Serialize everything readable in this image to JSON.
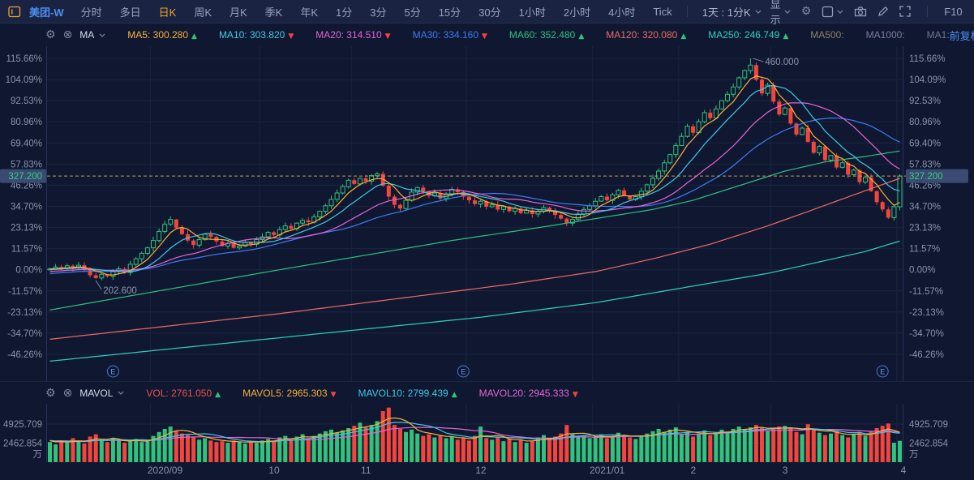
{
  "toolbar": {
    "stock_name": "美团-W",
    "tabs": [
      "分时",
      "多日",
      "日K",
      "周K",
      "月K",
      "季K",
      "年K",
      "1分",
      "3分",
      "5分",
      "15分",
      "30分",
      "1小时",
      "2小时",
      "4小时",
      "Tick"
    ],
    "active_tab": "日K",
    "composite_period": "1天 : 1分K",
    "display_label": "显示",
    "f10_label": "F10"
  },
  "ma_bar": {
    "indicator_name": "MA",
    "items": [
      {
        "label": "MA5",
        "value": "300.280",
        "color": "#f7b03c",
        "dir": "up"
      },
      {
        "label": "MA10",
        "value": "303.820",
        "color": "#3fc8e8",
        "dir": "down"
      },
      {
        "label": "MA20",
        "value": "314.510",
        "color": "#e664d8",
        "dir": "down"
      },
      {
        "label": "MA30",
        "value": "334.160",
        "color": "#3d7bf5",
        "dir": "down"
      },
      {
        "label": "MA60",
        "value": "352.480",
        "color": "#2fbf7f",
        "dir": "up"
      },
      {
        "label": "MA120",
        "value": "320.080",
        "color": "#f06a66",
        "dir": "up"
      },
      {
        "label": "MA250",
        "value": "246.749",
        "color": "#2fd0c0",
        "dir": "up"
      }
    ],
    "disabled_items": [
      {
        "label": "MA500",
        "color": "#8d8166"
      },
      {
        "label": "MA1000",
        "color": "#7f7aa0"
      },
      {
        "label": "MA1",
        "color": "#6d7690"
      }
    ],
    "adjust_label": "前复权"
  },
  "vol_bar": {
    "indicator_name": "MAVOL",
    "items": [
      {
        "label": "VOL",
        "value": "2761.050",
        "color": "#f05050",
        "dir": "up"
      },
      {
        "label": "MAVOL5",
        "value": "2965.303",
        "color": "#f7b03c",
        "dir": "down"
      },
      {
        "label": "MAVOL10",
        "value": "2799.439",
        "color": "#3fc8e8",
        "dir": "up"
      },
      {
        "label": "MAVOL20",
        "value": "2945.333",
        "color": "#e664d8",
        "dir": "down"
      }
    ]
  },
  "icons": {
    "settings": "⚙",
    "close": "⊗",
    "undo": "↺",
    "zoom_out": "⊖",
    "zoom_in": "⊕",
    "up_arrow": "▲",
    "down_arrow": "▼"
  },
  "colors": {
    "up": "#31c27c",
    "down": "#f4453d",
    "ma5": "#f7b03c",
    "ma10": "#3fc8e8",
    "ma20": "#e664d8",
    "ma30": "#3d7bf5",
    "ma60": "#2fbf7f",
    "ma120": "#f06a66",
    "ma250": "#2fd0c0",
    "last_price_line": "#c49a5e",
    "tag_bg": "#3b4a70",
    "tag_text": "#35d08a",
    "axis_text": "#8a93ab",
    "grid": "#1b2541",
    "border": "#26325a",
    "annotation": "#8e97ad",
    "marker_blue": "#4a77d8",
    "bg": "#0f1830"
  },
  "chart_data": {
    "type": "candlestick",
    "symbol": "美团-W",
    "period": "日K",
    "scale": "percent",
    "y_tick_labels": [
      "115.66%",
      "104.09%",
      "92.53%",
      "80.96%",
      "69.40%",
      "57.83%",
      "46.26%",
      "34.70%",
      "23.13%",
      "11.57%",
      "0.00%",
      "-11.57%",
      "-23.13%",
      "-34.70%",
      "-46.26%"
    ],
    "y_ticks_pct": [
      115.66,
      104.09,
      92.53,
      80.96,
      69.4,
      57.83,
      46.26,
      34.7,
      23.13,
      11.57,
      0,
      -11.57,
      -23.13,
      -34.7,
      -46.26
    ],
    "last_price": "327.200",
    "last_price_pct": 51.3,
    "annotations": {
      "high": {
        "text": "460.000",
        "day": 122
      },
      "low": {
        "text": "202.600",
        "day": 8
      }
    },
    "earnings_marker": "E",
    "earnings_days": [
      11,
      72,
      145
    ],
    "months": [
      {
        "label": "2020/09",
        "day": 18
      },
      {
        "label": "10",
        "day": 37
      },
      {
        "label": "11",
        "day": 53
      },
      {
        "label": "12",
        "day": 73
      },
      {
        "label": "2021/01",
        "day": 95
      },
      {
        "label": "2",
        "day": 110
      },
      {
        "label": "3",
        "day": 126
      },
      {
        "label": "4",
        "day": 148
      }
    ],
    "closes_pct": [
      0.5,
      1.5,
      0.8,
      2.2,
      1.0,
      2.5,
      0.0,
      -3.0,
      -4.5,
      -2.5,
      -3.5,
      -1.0,
      0.5,
      -1.5,
      3.0,
      6.0,
      9.0,
      12.0,
      16.0,
      21.0,
      25.0,
      27.5,
      23.0,
      19.5,
      16.0,
      13.5,
      16.5,
      19.5,
      18.0,
      15.5,
      13.0,
      14.5,
      12.0,
      13.0,
      15.0,
      14.0,
      16.5,
      18.0,
      20.5,
      19.0,
      22.0,
      24.0,
      22.5,
      25.5,
      27.0,
      26.0,
      29.0,
      32.0,
      35.0,
      38.5,
      42.0,
      45.5,
      49.0,
      47.0,
      50.0,
      48.5,
      51.5,
      52.5,
      46.0,
      40.0,
      35.5,
      33.5,
      38.0,
      42.5,
      45.0,
      43.0,
      40.5,
      42.0,
      39.0,
      41.5,
      44.0,
      42.5,
      40.0,
      38.0,
      36.0,
      37.5,
      34.5,
      35.5,
      33.0,
      34.5,
      32.0,
      33.5,
      31.0,
      32.5,
      30.5,
      32.0,
      34.0,
      32.5,
      30.0,
      28.0,
      25.5,
      27.5,
      30.5,
      33.0,
      35.0,
      37.5,
      40.0,
      38.0,
      41.0,
      43.5,
      40.5,
      38.5,
      40.0,
      43.0,
      46.5,
      50.0,
      54.0,
      58.5,
      63.0,
      68.0,
      73.0,
      78.5,
      75.0,
      81.0,
      86.0,
      83.0,
      88.0,
      92.5,
      96.0,
      100.0,
      105.0,
      109.0,
      112.0,
      104.0,
      96.5,
      101.0,
      92.0,
      85.0,
      88.5,
      80.0,
      74.0,
      77.5,
      70.0,
      64.0,
      67.5,
      60.0,
      62.5,
      56.0,
      58.5,
      52.0,
      54.5,
      48.0,
      50.5,
      43.0,
      37.0,
      33.0,
      28.5,
      34.5,
      51.3
    ],
    "special": {
      "8": {
        "low": -5.0
      },
      "122": {
        "high": 115.66
      },
      "148": {
        "low": 32.5
      }
    },
    "pre_closes_pct": [
      -6.0,
      -5.5,
      -6.2,
      -5.0,
      -4.6,
      -5.2,
      -4.0,
      -3.6,
      -4.2,
      -3.0,
      -2.8,
      -3.4,
      -2.2,
      -2.6,
      -1.8,
      -2.4,
      -1.4,
      -2.0,
      -1.0,
      -1.6,
      -0.6,
      -1.2,
      -0.2,
      -0.8,
      0.2,
      -0.4,
      0.6,
      0.0,
      0.8,
      0.3
    ],
    "long_ma_pct": {
      "ma60": [
        [
          0,
          -22
        ],
        [
          20,
          -11
        ],
        [
          40,
          0
        ],
        [
          55,
          8
        ],
        [
          70,
          16
        ],
        [
          85,
          23
        ],
        [
          95,
          28
        ],
        [
          105,
          33
        ],
        [
          112,
          38
        ],
        [
          120,
          46
        ],
        [
          128,
          54
        ],
        [
          135,
          59
        ],
        [
          142,
          62
        ],
        [
          148,
          65
        ]
      ],
      "ma120": [
        [
          0,
          -38
        ],
        [
          20,
          -31
        ],
        [
          40,
          -24
        ],
        [
          60,
          -16
        ],
        [
          80,
          -8
        ],
        [
          95,
          -1
        ],
        [
          105,
          6
        ],
        [
          115,
          14
        ],
        [
          125,
          24
        ],
        [
          133,
          33
        ],
        [
          140,
          41
        ],
        [
          148,
          50
        ]
      ],
      "ma250": [
        [
          0,
          -50
        ],
        [
          25,
          -42
        ],
        [
          50,
          -34
        ],
        [
          75,
          -26
        ],
        [
          95,
          -18
        ],
        [
          110,
          -10
        ],
        [
          125,
          -2
        ],
        [
          135,
          5
        ],
        [
          142,
          10
        ],
        [
          148,
          15.7
        ]
      ]
    },
    "volume": {
      "axis_tick_labels": [
        "4925.709",
        "2462.854"
      ],
      "axis_ticks_wan": [
        4925.709,
        2462.854
      ],
      "unit": "万",
      "values_wan": [
        2600,
        2300,
        2800,
        2500,
        3100,
        2700,
        2400,
        3300,
        3600,
        2900,
        2600,
        3100,
        2800,
        2500,
        2700,
        3000,
        2600,
        2900,
        3400,
        3900,
        4300,
        4600,
        4100,
        3700,
        3500,
        3200,
        2900,
        3100,
        2800,
        2600,
        2700,
        2500,
        2800,
        2600,
        2400,
        2700,
        2500,
        2800,
        3000,
        2700,
        3200,
        3400,
        2900,
        3300,
        3600,
        3100,
        3400,
        3700,
        4000,
        4200,
        3800,
        4100,
        4400,
        4700,
        5100,
        4500,
        4800,
        5300,
        6600,
        7050,
        4800,
        4300,
        3900,
        4200,
        3700,
        3400,
        3600,
        3200,
        3400,
        3100,
        3300,
        2900,
        3100,
        2800,
        3400,
        4600,
        3100,
        2900,
        3300,
        2700,
        3000,
        2600,
        2900,
        2500,
        2800,
        3200,
        3500,
        3000,
        3300,
        3700,
        4800,
        3600,
        3200,
        3400,
        3100,
        3300,
        3600,
        3100,
        3400,
        3800,
        3500,
        3200,
        3000,
        3400,
        3700,
        4000,
        4300,
        3900,
        4200,
        4500,
        3600,
        3900,
        3300,
        3700,
        4100,
        3500,
        3800,
        4200,
        3900,
        4300,
        4600,
        4200,
        4500,
        4800,
        4400,
        4000,
        4300,
        4600,
        4700,
        4400,
        3900,
        3600,
        4900,
        4300,
        3800,
        3500,
        3700,
        4000,
        3500,
        3200,
        3600,
        3900,
        3400,
        4000,
        4400,
        4700,
        5000,
        2500,
        2761
      ],
      "pre_values_wan": [
        2700,
        2900,
        2600,
        3000,
        2800,
        2500,
        2900,
        2700,
        3100,
        2600,
        2800,
        3000,
        2700,
        2900,
        2500,
        2800,
        3100,
        2600,
        2900,
        2700
      ]
    }
  }
}
